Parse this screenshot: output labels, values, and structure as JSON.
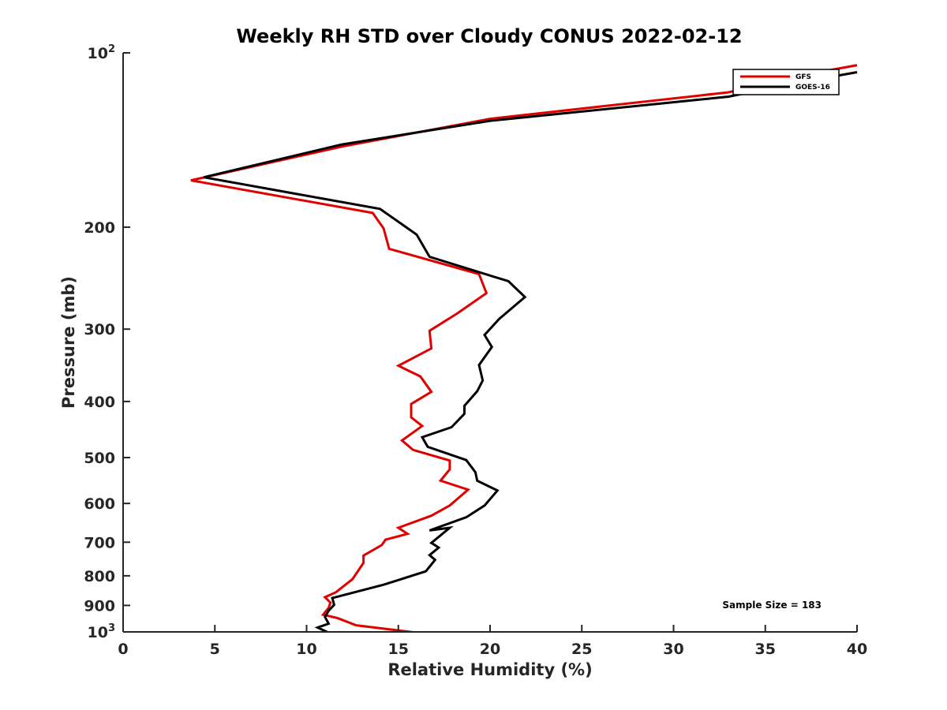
{
  "chart_data": {
    "type": "line",
    "title": "Weekly RH STD over Cloudy CONUS 2022-02-12",
    "xlabel": "Relative Humidity (%)",
    "ylabel": "Pressure (mb)",
    "xlim": [
      0,
      40
    ],
    "ylim": [
      100,
      1000
    ],
    "y_scale": "log",
    "y_reversed": true,
    "grid": false,
    "legend_position": "top-right",
    "x_ticks": [
      0,
      5,
      10,
      15,
      20,
      25,
      30,
      35,
      40
    ],
    "y_ticks": [
      {
        "value": 100,
        "label": "10",
        "sup": "2"
      },
      {
        "value": 200,
        "label": "200"
      },
      {
        "value": 300,
        "label": "300"
      },
      {
        "value": 400,
        "label": "400"
      },
      {
        "value": 500,
        "label": "500"
      },
      {
        "value": 600,
        "label": "600"
      },
      {
        "value": 700,
        "label": "700"
      },
      {
        "value": 800,
        "label": "800"
      },
      {
        "value": 900,
        "label": "900"
      },
      {
        "value": 1000,
        "label": "10",
        "sup": "3"
      }
    ],
    "annotation": "Sample Size = 183",
    "series": [
      {
        "name": "GFS",
        "color": "#e00000",
        "points": [
          [
            40.0,
            105
          ],
          [
            36.5,
            110
          ],
          [
            33.0,
            117
          ],
          [
            20.0,
            130
          ],
          [
            12.0,
            145
          ],
          [
            3.7,
            166
          ],
          [
            13.6,
            189
          ],
          [
            14.2,
            201
          ],
          [
            14.5,
            218
          ],
          [
            19.4,
            241
          ],
          [
            19.8,
            260
          ],
          [
            18.2,
            282
          ],
          [
            16.7,
            302
          ],
          [
            16.8,
            324
          ],
          [
            15.0,
            347
          ],
          [
            16.2,
            362
          ],
          [
            16.8,
            385
          ],
          [
            15.7,
            404
          ],
          [
            15.7,
            426
          ],
          [
            16.3,
            441
          ],
          [
            15.2,
            467
          ],
          [
            15.8,
            485
          ],
          [
            17.8,
            506
          ],
          [
            17.8,
            524
          ],
          [
            17.3,
            548
          ],
          [
            18.8,
            568
          ],
          [
            17.8,
            605
          ],
          [
            16.8,
            630
          ],
          [
            15.0,
            661
          ],
          [
            15.5,
            677
          ],
          [
            14.3,
            693
          ],
          [
            14.1,
            708
          ],
          [
            13.1,
            738
          ],
          [
            13.1,
            760
          ],
          [
            12.5,
            811
          ],
          [
            11.6,
            854
          ],
          [
            11.0,
            871
          ],
          [
            11.3,
            890
          ],
          [
            11.2,
            909
          ],
          [
            10.9,
            934
          ],
          [
            11.7,
            947
          ],
          [
            12.7,
            974
          ],
          [
            16.0,
            1003
          ]
        ]
      },
      {
        "name": "GOES-16",
        "color": "#000000",
        "points": [
          [
            40.0,
            108
          ],
          [
            36.5,
            113
          ],
          [
            33.0,
            119
          ],
          [
            20.0,
            131
          ],
          [
            11.9,
            144
          ],
          [
            4.4,
            164
          ],
          [
            14.0,
            186
          ],
          [
            16.0,
            206
          ],
          [
            16.7,
            225
          ],
          [
            21.0,
            248
          ],
          [
            21.9,
            264
          ],
          [
            20.5,
            288
          ],
          [
            19.7,
            307
          ],
          [
            20.1,
            322
          ],
          [
            19.4,
            346
          ],
          [
            19.6,
            368
          ],
          [
            19.3,
            384
          ],
          [
            18.6,
            407
          ],
          [
            18.6,
            420
          ],
          [
            17.9,
            443
          ],
          [
            16.3,
            461
          ],
          [
            16.6,
            479
          ],
          [
            18.7,
            505
          ],
          [
            19.2,
            530
          ],
          [
            19.3,
            548
          ],
          [
            20.4,
            570
          ],
          [
            19.7,
            605
          ],
          [
            18.7,
            634
          ],
          [
            16.7,
            668
          ],
          [
            17.8,
            661
          ],
          [
            16.8,
            702
          ],
          [
            17.2,
            715
          ],
          [
            16.7,
            737
          ],
          [
            17.0,
            751
          ],
          [
            16.5,
            786
          ],
          [
            14.2,
            829
          ],
          [
            11.4,
            874
          ],
          [
            11.5,
            898
          ],
          [
            11.2,
            919
          ],
          [
            11.0,
            942
          ],
          [
            11.2,
            968
          ],
          [
            10.6,
            983
          ],
          [
            11.2,
            1003
          ]
        ]
      }
    ]
  }
}
